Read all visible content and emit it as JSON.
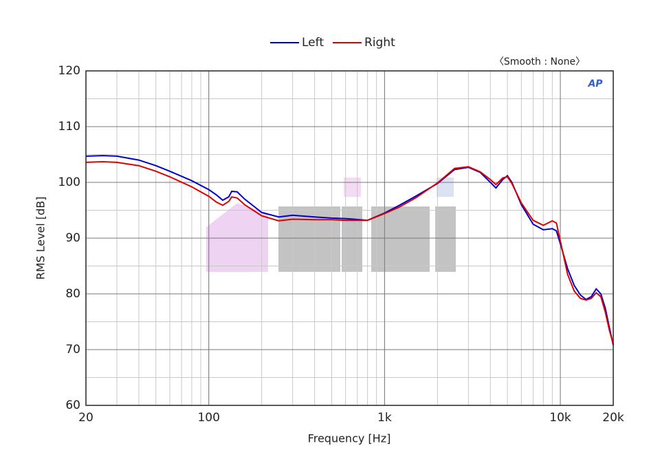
{
  "chart_data": {
    "type": "line",
    "xlabel": "Frequency [Hz]",
    "ylabel": "RMS Level [dB]",
    "annotation": "〈Smooth : None〉",
    "logo": "AP",
    "xscale": "log",
    "grid": true,
    "xlim": [
      20,
      20000
    ],
    "ylim": [
      60,
      120
    ],
    "xticks": [
      20,
      100,
      {
        "value": 1000,
        "label": "1k"
      },
      {
        "value": 10000,
        "label": "10k"
      },
      {
        "value": 20000,
        "label": "20k"
      }
    ],
    "yticks": [
      60,
      70,
      80,
      90,
      100,
      110,
      120
    ],
    "legend": "top",
    "x": [
      20,
      25,
      30,
      40,
      50,
      60,
      80,
      100,
      110,
      120,
      130,
      135,
      145,
      160,
      200,
      250,
      300,
      400,
      500,
      600,
      800,
      1000,
      1200,
      1500,
      2000,
      2500,
      3000,
      3500,
      4000,
      4300,
      4700,
      5000,
      5300,
      6000,
      7000,
      8000,
      9000,
      9500,
      10000,
      11000,
      12000,
      13000,
      14000,
      15000,
      16000,
      17000,
      18000,
      19000,
      20000
    ],
    "series": [
      {
        "name": "Left",
        "color": "#0000cc",
        "values": [
          104.7,
          104.8,
          104.7,
          104.0,
          103.0,
          102.0,
          100.3,
          98.7,
          97.8,
          96.8,
          97.4,
          98.4,
          98.3,
          97.0,
          94.6,
          93.8,
          94.1,
          93.8,
          93.6,
          93.5,
          93.2,
          94.5,
          95.8,
          97.5,
          99.8,
          102.3,
          102.7,
          101.8,
          100.0,
          99.0,
          100.5,
          101.2,
          100.0,
          96.0,
          92.5,
          91.5,
          91.7,
          91.3,
          89.0,
          84.5,
          81.5,
          79.8,
          79.0,
          79.5,
          80.9,
          80.0,
          77.5,
          74.0,
          70.8
        ]
      },
      {
        "name": "Right",
        "color": "#dd0000",
        "values": [
          103.6,
          103.7,
          103.6,
          103.0,
          102.0,
          101.0,
          99.2,
          97.5,
          96.5,
          95.9,
          96.6,
          97.4,
          97.2,
          96.0,
          94.0,
          93.1,
          93.4,
          93.3,
          93.3,
          93.2,
          93.2,
          94.4,
          95.5,
          97.2,
          99.9,
          102.5,
          102.8,
          101.9,
          100.5,
          99.6,
          100.8,
          101.0,
          99.8,
          96.3,
          93.2,
          92.3,
          93.1,
          92.7,
          89.5,
          83.5,
          80.5,
          79.2,
          78.9,
          79.2,
          80.2,
          79.5,
          76.8,
          73.5,
          71.0
        ]
      }
    ]
  }
}
